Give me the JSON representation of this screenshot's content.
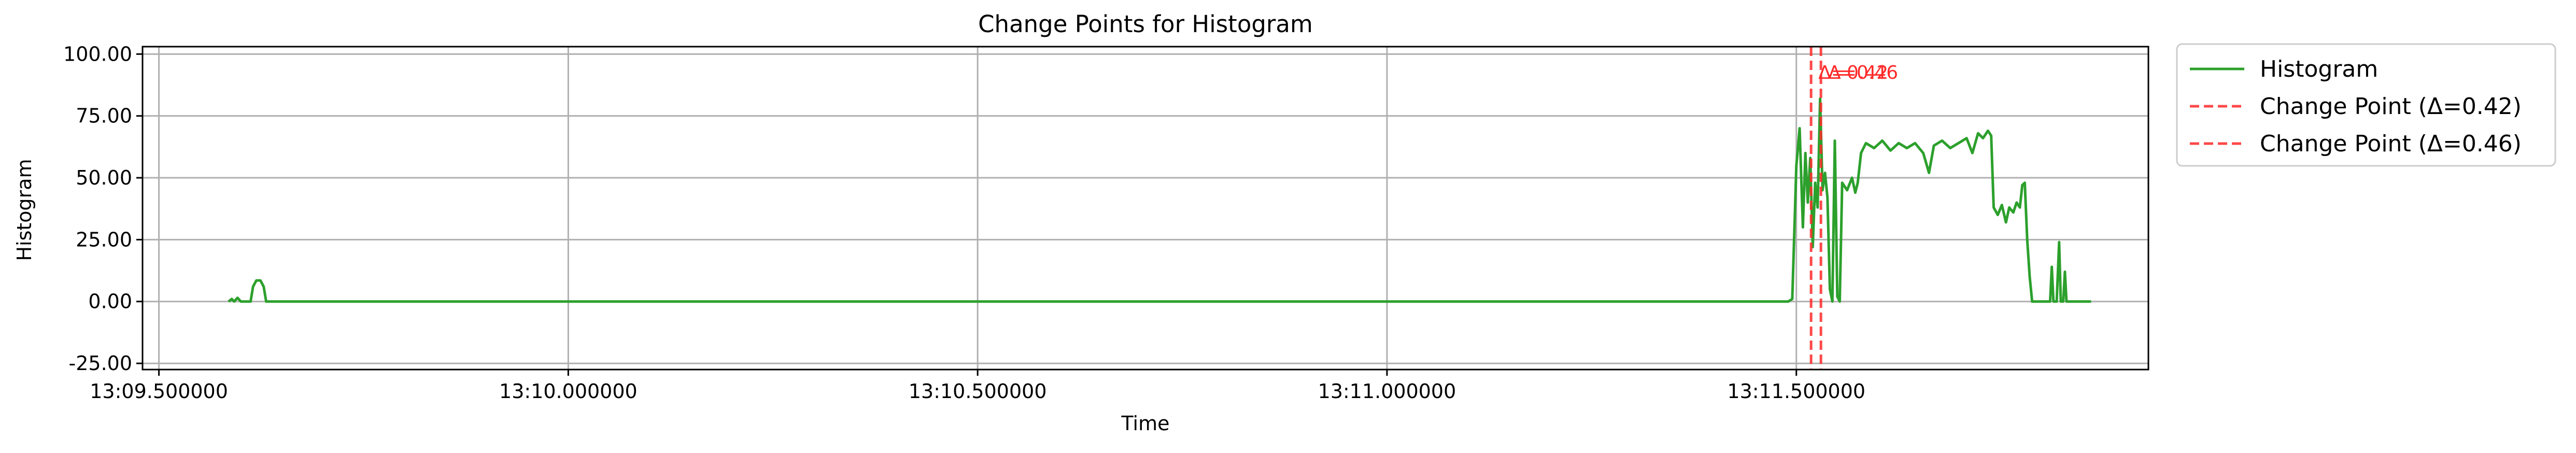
{
  "chart_data": {
    "type": "line",
    "title": "Change Points for Histogram",
    "xlabel": "Time",
    "ylabel": "Histogram",
    "x_unit": "seconds after 13:09",
    "xlim": [
      29.48,
      31.93
    ],
    "ylim": [
      -27.5,
      103.0
    ],
    "grid": true,
    "legend_position": "outside-right",
    "x_ticks": [
      {
        "value": 29.5,
        "label": "13:09.500000"
      },
      {
        "value": 30.0,
        "label": "13:10.000000"
      },
      {
        "value": 30.5,
        "label": "13:10.500000"
      },
      {
        "value": 31.0,
        "label": "13:11.000000"
      },
      {
        "value": 31.5,
        "label": "13:11.500000"
      }
    ],
    "y_ticks": [
      {
        "value": -25,
        "label": "-25.00"
      },
      {
        "value": 0,
        "label": "0.00"
      },
      {
        "value": 25,
        "label": "25.00"
      },
      {
        "value": 50,
        "label": "50.00"
      },
      {
        "value": 75,
        "label": "75.00"
      },
      {
        "value": 100,
        "label": "100.00"
      }
    ],
    "series": [
      {
        "name": "Histogram",
        "color": "#2ca02c",
        "points": [
          [
            29.585,
            0
          ],
          [
            29.589,
            1
          ],
          [
            29.592,
            0
          ],
          [
            29.596,
            1.5
          ],
          [
            29.6,
            0
          ],
          [
            29.612,
            0
          ],
          [
            29.615,
            6
          ],
          [
            29.619,
            8.5
          ],
          [
            29.624,
            8.5
          ],
          [
            29.628,
            6
          ],
          [
            29.631,
            0
          ],
          [
            30.0,
            0
          ],
          [
            30.5,
            0
          ],
          [
            31.0,
            0
          ],
          [
            31.49,
            0
          ],
          [
            31.495,
            1
          ],
          [
            31.5,
            55
          ],
          [
            31.504,
            70
          ],
          [
            31.508,
            30
          ],
          [
            31.511,
            60
          ],
          [
            31.514,
            40
          ],
          [
            31.517,
            58
          ],
          [
            31.52,
            22
          ],
          [
            31.523,
            48
          ],
          [
            31.526,
            38
          ],
          [
            31.529,
            82
          ],
          [
            31.532,
            45
          ],
          [
            31.535,
            52
          ],
          [
            31.538,
            42
          ],
          [
            31.541,
            5
          ],
          [
            31.544,
            0
          ],
          [
            31.547,
            65
          ],
          [
            31.55,
            2
          ],
          [
            31.553,
            0
          ],
          [
            31.556,
            48
          ],
          [
            31.562,
            45
          ],
          [
            31.568,
            50
          ],
          [
            31.572,
            44
          ],
          [
            31.575,
            48
          ],
          [
            31.579,
            60
          ],
          [
            31.585,
            64
          ],
          [
            31.595,
            62
          ],
          [
            31.605,
            65
          ],
          [
            31.615,
            61
          ],
          [
            31.625,
            64
          ],
          [
            31.635,
            62
          ],
          [
            31.645,
            64
          ],
          [
            31.655,
            60
          ],
          [
            31.662,
            52
          ],
          [
            31.668,
            63
          ],
          [
            31.678,
            65
          ],
          [
            31.688,
            62
          ],
          [
            31.698,
            64
          ],
          [
            31.708,
            66
          ],
          [
            31.715,
            60
          ],
          [
            31.722,
            68
          ],
          [
            31.728,
            66
          ],
          [
            31.734,
            69
          ],
          [
            31.738,
            67
          ],
          [
            31.741,
            38
          ],
          [
            31.746,
            35
          ],
          [
            31.751,
            39
          ],
          [
            31.756,
            32
          ],
          [
            31.76,
            38
          ],
          [
            31.765,
            36
          ],
          [
            31.769,
            40
          ],
          [
            31.773,
            38
          ],
          [
            31.776,
            47
          ],
          [
            31.779,
            48
          ],
          [
            31.782,
            25
          ],
          [
            31.785,
            10
          ],
          [
            31.788,
            0
          ],
          [
            31.81,
            0
          ],
          [
            31.812,
            14
          ],
          [
            31.814,
            0
          ],
          [
            31.818,
            0
          ],
          [
            31.821,
            24
          ],
          [
            31.823,
            0
          ],
          [
            31.826,
            0
          ],
          [
            31.828,
            12
          ],
          [
            31.83,
            0
          ],
          [
            31.86,
            0
          ]
        ]
      }
    ],
    "change_points": [
      {
        "name": "Change Point (Δ=0.42)",
        "x": 31.518,
        "label": "Δ=0.42",
        "color": "#ff2a2a"
      },
      {
        "name": "Change Point (Δ=0.46)",
        "x": 31.53,
        "label": "Δ=0.46",
        "color": "#ff2a2a"
      }
    ]
  }
}
